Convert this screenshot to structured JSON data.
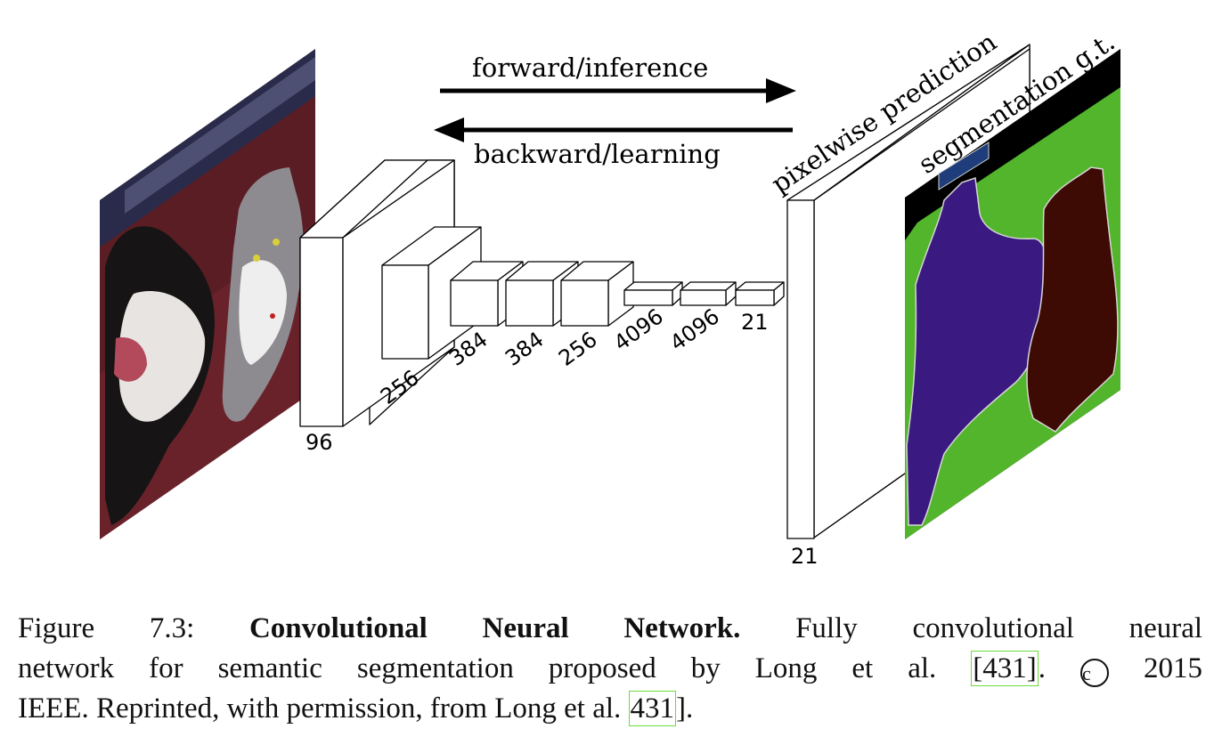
{
  "arrows": {
    "forward_label": "forward/inference",
    "backward_label": "backward/learning"
  },
  "layers": [
    {
      "label": "96"
    },
    {
      "label": "256"
    },
    {
      "label": "384"
    },
    {
      "label": "384"
    },
    {
      "label": "256"
    },
    {
      "label": "4096"
    },
    {
      "label": "4096"
    },
    {
      "label": "21"
    }
  ],
  "output": {
    "label": "21",
    "title": "pixelwise prediction"
  },
  "ground_truth": {
    "title": "segmentation g.t."
  },
  "caption": {
    "figure_number": "Figure 7.3:",
    "title": "Convolutional Neural Network.",
    "text_1": "Fully convolutional neural",
    "text_2": "network for semantic segmentation proposed by Long et al.",
    "cite_1": "431",
    "text_3": ".",
    "copyright_symbol": "c",
    "year": "2015",
    "text_4": "IEEE. Reprinted, with permission, from Long et al.",
    "cite_2": "431",
    "text_5": "]."
  }
}
